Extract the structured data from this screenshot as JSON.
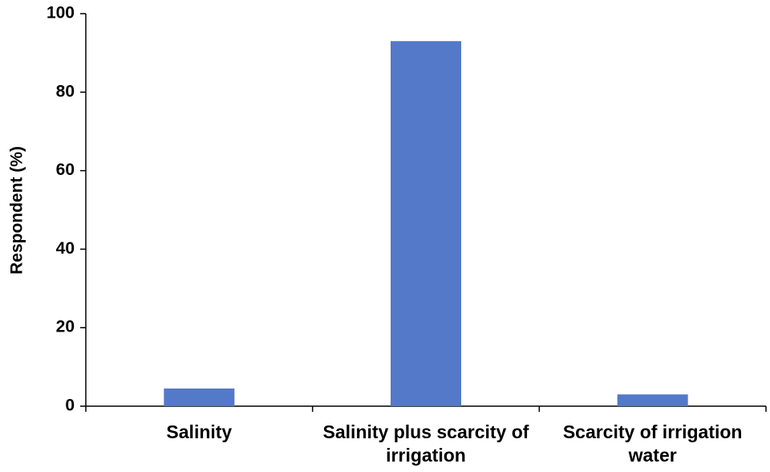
{
  "chart_data": {
    "type": "bar",
    "y_label": "Respondent (%)",
    "categories": [
      "Salinity",
      "Salinity plus scarcity of irrigation",
      "Scarcity of irrigation water"
    ],
    "values": [
      4.5,
      93,
      3
    ],
    "color": "#5479c8",
    "ylim": [
      0,
      100
    ],
    "yticks": [
      0,
      20,
      40,
      60,
      80,
      100
    ],
    "grid": false
  }
}
